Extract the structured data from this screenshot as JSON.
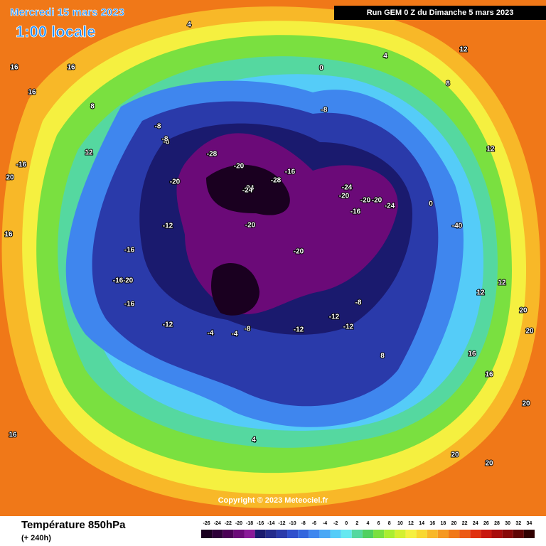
{
  "header": {
    "date": "Mercredi 15 mars 2023",
    "time": "1:00 locale",
    "run": "Run GEM 0 Z du Dimanche 5 mars 2023"
  },
  "copyright": "Copyright © 2023 Meteociel.fr",
  "legend": {
    "title": "Température 850hPa",
    "lead": "(+ 240h)",
    "ticks": [
      -26,
      -24,
      -22,
      -20,
      -18,
      -16,
      -14,
      -12,
      -10,
      -8,
      -6,
      -4,
      -2,
      0,
      2,
      4,
      6,
      8,
      10,
      12,
      14,
      16,
      18,
      20,
      22,
      24,
      26,
      28,
      30,
      32,
      34
    ],
    "colors": [
      "#1a0020",
      "#2d0038",
      "#4a0055",
      "#6b0a78",
      "#8a1a98",
      "#1a1a6e",
      "#242b8c",
      "#2a3aaa",
      "#2f4fcc",
      "#3366dd",
      "#3f86ee",
      "#4aa8f5",
      "#55ccf8",
      "#66e8f0",
      "#55d8a0",
      "#4fd060",
      "#7ae040",
      "#aaee30",
      "#d4f030",
      "#f5f040",
      "#f8d830",
      "#f8b828",
      "#f59820",
      "#f07818",
      "#ec5a14",
      "#e03010",
      "#c81810",
      "#a80c0c",
      "#880808",
      "#600404",
      "#300000"
    ]
  },
  "map_labels": [
    4,
    8,
    16,
    16,
    12,
    16,
    20,
    12,
    -16,
    16,
    16,
    -8,
    -8,
    -28,
    -20,
    -24,
    -28,
    -16,
    -20,
    -24,
    -20,
    -24,
    -20,
    -16,
    -20,
    -12,
    -16,
    -20,
    -16,
    -20,
    -24,
    -20,
    -12,
    -16,
    -12,
    -12,
    -4,
    -8,
    -12,
    -8,
    -8,
    -8,
    -4,
    0,
    4,
    8,
    12,
    12,
    20,
    20,
    16,
    20,
    8,
    16,
    20,
    20,
    4,
    -40,
    0,
    12
  ]
}
